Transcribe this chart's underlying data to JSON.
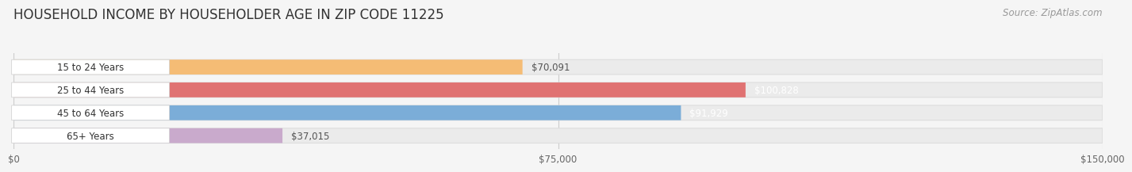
{
  "title": "HOUSEHOLD INCOME BY HOUSEHOLDER AGE IN ZIP CODE 11225",
  "source": "Source: ZipAtlas.com",
  "categories": [
    "15 to 24 Years",
    "25 to 44 Years",
    "45 to 64 Years",
    "65+ Years"
  ],
  "values": [
    70091,
    100828,
    91929,
    37015
  ],
  "bar_colors": [
    "#F5BC75",
    "#E07272",
    "#7BADD8",
    "#C9AACC"
  ],
  "value_label_colors": [
    "#555555",
    "#ffffff",
    "#ffffff",
    "#555555"
  ],
  "value_labels": [
    "$70,091",
    "$100,828",
    "$91,929",
    "$37,015"
  ],
  "xlim": [
    0,
    150000
  ],
  "xtick_values": [
    0,
    75000,
    150000
  ],
  "xtick_labels": [
    "$0",
    "$75,000",
    "$150,000"
  ],
  "bg_color": "#f5f5f5",
  "bar_bg_color": "#ebebeb",
  "cat_label_bg": "#ffffff",
  "title_fontsize": 12,
  "source_fontsize": 8.5,
  "bar_height": 0.65,
  "n_bars": 4
}
